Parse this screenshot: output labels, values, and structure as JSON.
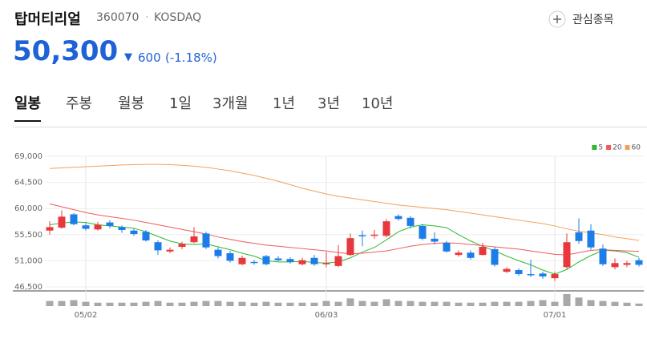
{
  "header": {
    "name": "탑머티리얼",
    "code": "360070",
    "separator": "·",
    "market": "KOSDAQ",
    "watch_button": "관심종목",
    "price": "50,300",
    "change_arrow": "▼",
    "change": "600",
    "change_pct": "(-1.18%)"
  },
  "tabs": {
    "items": [
      "일봉",
      "주봉",
      "월봉",
      "1일",
      "3개월",
      "1년",
      "3년",
      "10년"
    ],
    "active": 0
  },
  "chart_data": {
    "type": "candlestick",
    "categories": [
      null,
      null,
      null,
      "05/02",
      null,
      null,
      null,
      null,
      null,
      null,
      null,
      null,
      null,
      null,
      null,
      null,
      null,
      null,
      null,
      null,
      null,
      null,
      null,
      "06/03",
      null,
      null,
      null,
      null,
      null,
      null,
      null,
      null,
      null,
      null,
      null,
      null,
      null,
      null,
      null,
      null,
      null,
      null,
      "07/01",
      null,
      null,
      null,
      null,
      null,
      null,
      null
    ],
    "open": [
      56200,
      56700,
      59000,
      57100,
      56400,
      57600,
      56800,
      56200,
      56000,
      54200,
      52600,
      53400,
      54200,
      55700,
      52900,
      52300,
      50400,
      50800,
      51800,
      51400,
      51300,
      50400,
      51500,
      50400,
      50100,
      52000,
      55400,
      55300,
      55300,
      58700,
      58400,
      57000,
      54800,
      54100,
      52000,
      52400,
      52000,
      53000,
      49100,
      49400,
      48700,
      48800,
      48000,
      49900,
      55900,
      56200,
      53100,
      49900,
      50300,
      51100
    ],
    "high": [
      57800,
      59700,
      59200,
      57500,
      57700,
      58000,
      57100,
      56500,
      56300,
      54500,
      53300,
      54300,
      56800,
      56000,
      53300,
      52700,
      51900,
      51100,
      52000,
      51800,
      51600,
      51500,
      52000,
      52500,
      53700,
      55700,
      56200,
      56300,
      58200,
      59000,
      58700,
      57300,
      55900,
      54400,
      52800,
      52800,
      54100,
      53400,
      49900,
      49700,
      51200,
      49100,
      49100,
      55700,
      58300,
      57300,
      53800,
      51400,
      51000,
      51500
    ],
    "low": [
      55500,
      56500,
      57100,
      56200,
      56200,
      56600,
      55800,
      55300,
      54300,
      52000,
      52300,
      53000,
      54000,
      53000,
      51400,
      50700,
      50200,
      50300,
      50200,
      50900,
      50500,
      50200,
      50100,
      49900,
      49900,
      51800,
      53500,
      54800,
      55000,
      57900,
      56600,
      54500,
      53800,
      52400,
      51700,
      51200,
      51900,
      50000,
      48900,
      48400,
      48200,
      47900,
      47500,
      49600,
      53900,
      52900,
      50100,
      49500,
      49900,
      50000
    ],
    "close": [
      56800,
      58600,
      57300,
      56500,
      57200,
      57000,
      56300,
      55600,
      54500,
      52800,
      52900,
      53900,
      55200,
      53300,
      51800,
      51000,
      51500,
      50600,
      50400,
      51100,
      50800,
      51100,
      50400,
      50600,
      51800,
      54900,
      55200,
      55500,
      57800,
      58200,
      57000,
      54800,
      54300,
      52600,
      52400,
      51500,
      53400,
      50300,
      49600,
      48700,
      48500,
      48300,
      48700,
      54200,
      54400,
      53300,
      50400,
      50600,
      50600,
      50300
    ],
    "volume": [
      60000,
      60000,
      70000,
      50000,
      40000,
      40000,
      40000,
      40000,
      50000,
      60000,
      40000,
      40000,
      50000,
      60000,
      60000,
      50000,
      50000,
      40000,
      50000,
      40000,
      40000,
      40000,
      40000,
      60000,
      50000,
      90000,
      60000,
      50000,
      80000,
      60000,
      60000,
      50000,
      50000,
      50000,
      40000,
      40000,
      40000,
      50000,
      50000,
      50000,
      60000,
      70000,
      50000,
      140000,
      100000,
      70000,
      60000,
      50000,
      40000,
      30000
    ],
    "series": [
      {
        "name": "5",
        "color": "#2db82d",
        "values": [
          57200,
          57500,
          57700,
          57600,
          57200,
          57000,
          56800,
          56600,
          56000,
          55200,
          54400,
          53900,
          53800,
          53900,
          53400,
          52900,
          52300,
          51800,
          51000,
          50800,
          50800,
          50900,
          50700,
          50600,
          50800,
          51500,
          52500,
          53300,
          54600,
          56000,
          56800,
          57200,
          57000,
          56700,
          55500,
          54400,
          53500,
          52700,
          51800,
          51000,
          50300,
          49400,
          48700,
          49500,
          50800,
          51900,
          52800,
          52700,
          52400,
          51600
        ]
      },
      {
        "name": "20",
        "color": "#f25a5a",
        "values": [
          60800,
          60300,
          59800,
          59300,
          58900,
          58600,
          58300,
          58000,
          57600,
          57200,
          56800,
          56400,
          56000,
          55600,
          55100,
          54700,
          54300,
          54000,
          53700,
          53500,
          53300,
          53100,
          52900,
          52700,
          52400,
          52200,
          52300,
          52500,
          52700,
          53100,
          53500,
          53800,
          54000,
          54100,
          54000,
          53800,
          53600,
          53400,
          53200,
          53000,
          52700,
          52400,
          52100,
          52000,
          52400,
          52800,
          52900,
          52800,
          52700,
          52600
        ]
      },
      {
        "name": "60",
        "color": "#f5a05a",
        "values": [
          66900,
          67000,
          67100,
          67200,
          67300,
          67400,
          67500,
          67550,
          67600,
          67600,
          67550,
          67450,
          67300,
          67100,
          66800,
          66500,
          66100,
          65700,
          65200,
          64700,
          64100,
          63500,
          63000,
          62500,
          62100,
          61800,
          61500,
          61200,
          60900,
          60600,
          60400,
          60200,
          60000,
          59800,
          59500,
          59200,
          58900,
          58600,
          58300,
          58000,
          57700,
          57400,
          57000,
          56500,
          56100,
          55800,
          55500,
          55100,
          54800,
          54500
        ]
      }
    ],
    "ylim": [
      46500,
      69000
    ],
    "yticks": [
      {
        "value": 46500,
        "label": "46,500"
      },
      {
        "value": 51000,
        "label": "51,000"
      },
      {
        "value": 55500,
        "label": "55,500"
      },
      {
        "value": 60000,
        "label": "60,000"
      },
      {
        "value": 64500,
        "label": "64,500"
      },
      {
        "value": 69000,
        "label": "69,000"
      }
    ],
    "up_color": "#e8383d",
    "down_color": "#1d7de8",
    "volume_color": "#a8a8a8",
    "grid": true,
    "legend": "top-right"
  }
}
